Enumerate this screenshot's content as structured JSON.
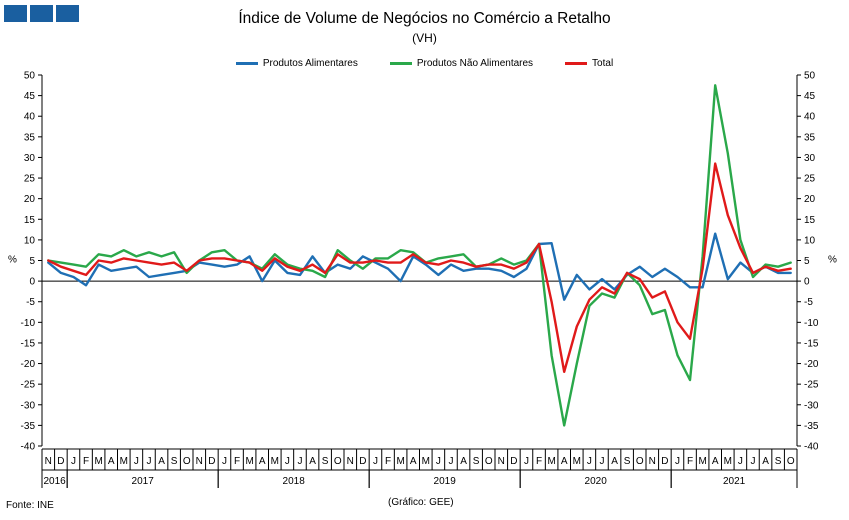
{
  "title": "Índice de Volume de Negócios no Comércio a Retalho",
  "subtitle": "(VH)",
  "source": "Fonte: INE",
  "credit": "(Gráfico: GEE)",
  "chart_data": {
    "type": "line",
    "ylabel": "%",
    "ylim": [
      -40,
      50
    ],
    "yticks": [
      50,
      45,
      40,
      35,
      30,
      25,
      20,
      15,
      10,
      5,
      0,
      -5,
      -10,
      -15,
      -20,
      -25,
      -30,
      -35,
      -40
    ],
    "month_labels": [
      "N",
      "D",
      "J",
      "F",
      "M",
      "A",
      "M",
      "J",
      "J",
      "A",
      "S",
      "O",
      "N",
      "D",
      "J",
      "F",
      "M",
      "A",
      "M",
      "J",
      "J",
      "A",
      "S",
      "O",
      "N",
      "D",
      "J",
      "F",
      "M",
      "A",
      "M",
      "J",
      "J",
      "A",
      "S",
      "O",
      "N",
      "D",
      "J",
      "F",
      "M",
      "A",
      "M",
      "J",
      "J",
      "A",
      "S",
      "O",
      "N",
      "D",
      "J",
      "F",
      "M",
      "A",
      "M",
      "J",
      "J",
      "A",
      "S",
      "O"
    ],
    "year_labels": [
      {
        "label": "2016",
        "start": 0,
        "end": 1
      },
      {
        "label": "2017",
        "start": 2,
        "end": 13
      },
      {
        "label": "2018",
        "start": 14,
        "end": 25
      },
      {
        "label": "2019",
        "start": 26,
        "end": 37
      },
      {
        "label": "2020",
        "start": 38,
        "end": 49
      },
      {
        "label": "2021",
        "start": 50,
        "end": 59
      }
    ],
    "legend_position": "top",
    "series": [
      {
        "name": "Produtos Alimentares",
        "color": "#1f6fb4",
        "values": [
          4.5,
          2,
          1,
          -1,
          4,
          2.5,
          3,
          3.5,
          1,
          1.5,
          2,
          2.5,
          4.5,
          4,
          3.5,
          4,
          6,
          0,
          5,
          2,
          1.5,
          6,
          2,
          4,
          3,
          6,
          4.5,
          3,
          0,
          6,
          4,
          1.5,
          4,
          2.5,
          3,
          3,
          2.5,
          1,
          3,
          9,
          9.2,
          -4.5,
          1.5,
          -2,
          0.5,
          -2,
          1.5,
          3.5,
          1,
          3,
          1,
          -1.5,
          -1.5,
          11.5,
          0.5,
          4.5,
          2,
          3.5,
          2,
          2
        ]
      },
      {
        "name": "Produtos Não Alimentares",
        "color": "#2aa84a",
        "values": [
          5,
          4.5,
          4,
          3.5,
          6.5,
          6,
          7.5,
          6,
          7,
          6,
          7,
          2,
          5,
          7,
          7.5,
          5,
          4.5,
          3,
          6.5,
          4,
          3,
          2.5,
          1,
          7.5,
          5,
          3,
          5.5,
          5.5,
          7.5,
          7,
          4.5,
          5.5,
          6,
          6.5,
          3.5,
          4,
          5.5,
          4,
          5,
          9,
          -18,
          -35,
          -20,
          -6,
          -3,
          -4,
          2,
          -1,
          -8,
          -7,
          -18,
          -24,
          6,
          47.5,
          31,
          10,
          1,
          4,
          3.5,
          4.5
        ]
      },
      {
        "name": "Total",
        "color": "#e01a1a",
        "values": [
          5,
          3.5,
          2.5,
          1.5,
          5,
          4.5,
          5.5,
          5,
          4.5,
          4,
          4.5,
          2.5,
          5,
          5.5,
          5.5,
          5,
          4.5,
          2.5,
          5.5,
          3.5,
          2.5,
          4,
          2,
          6.5,
          4.5,
          4.5,
          5,
          4.5,
          4.5,
          6.5,
          4.5,
          4,
          5,
          4.5,
          3.5,
          4,
          4,
          3,
          4.5,
          9,
          -5,
          -22,
          -11,
          -4.5,
          -1.5,
          -3,
          2,
          0.5,
          -4,
          -2.5,
          -10,
          -14,
          3,
          28.5,
          16,
          8,
          2,
          3.5,
          2.5,
          3
        ]
      }
    ]
  }
}
